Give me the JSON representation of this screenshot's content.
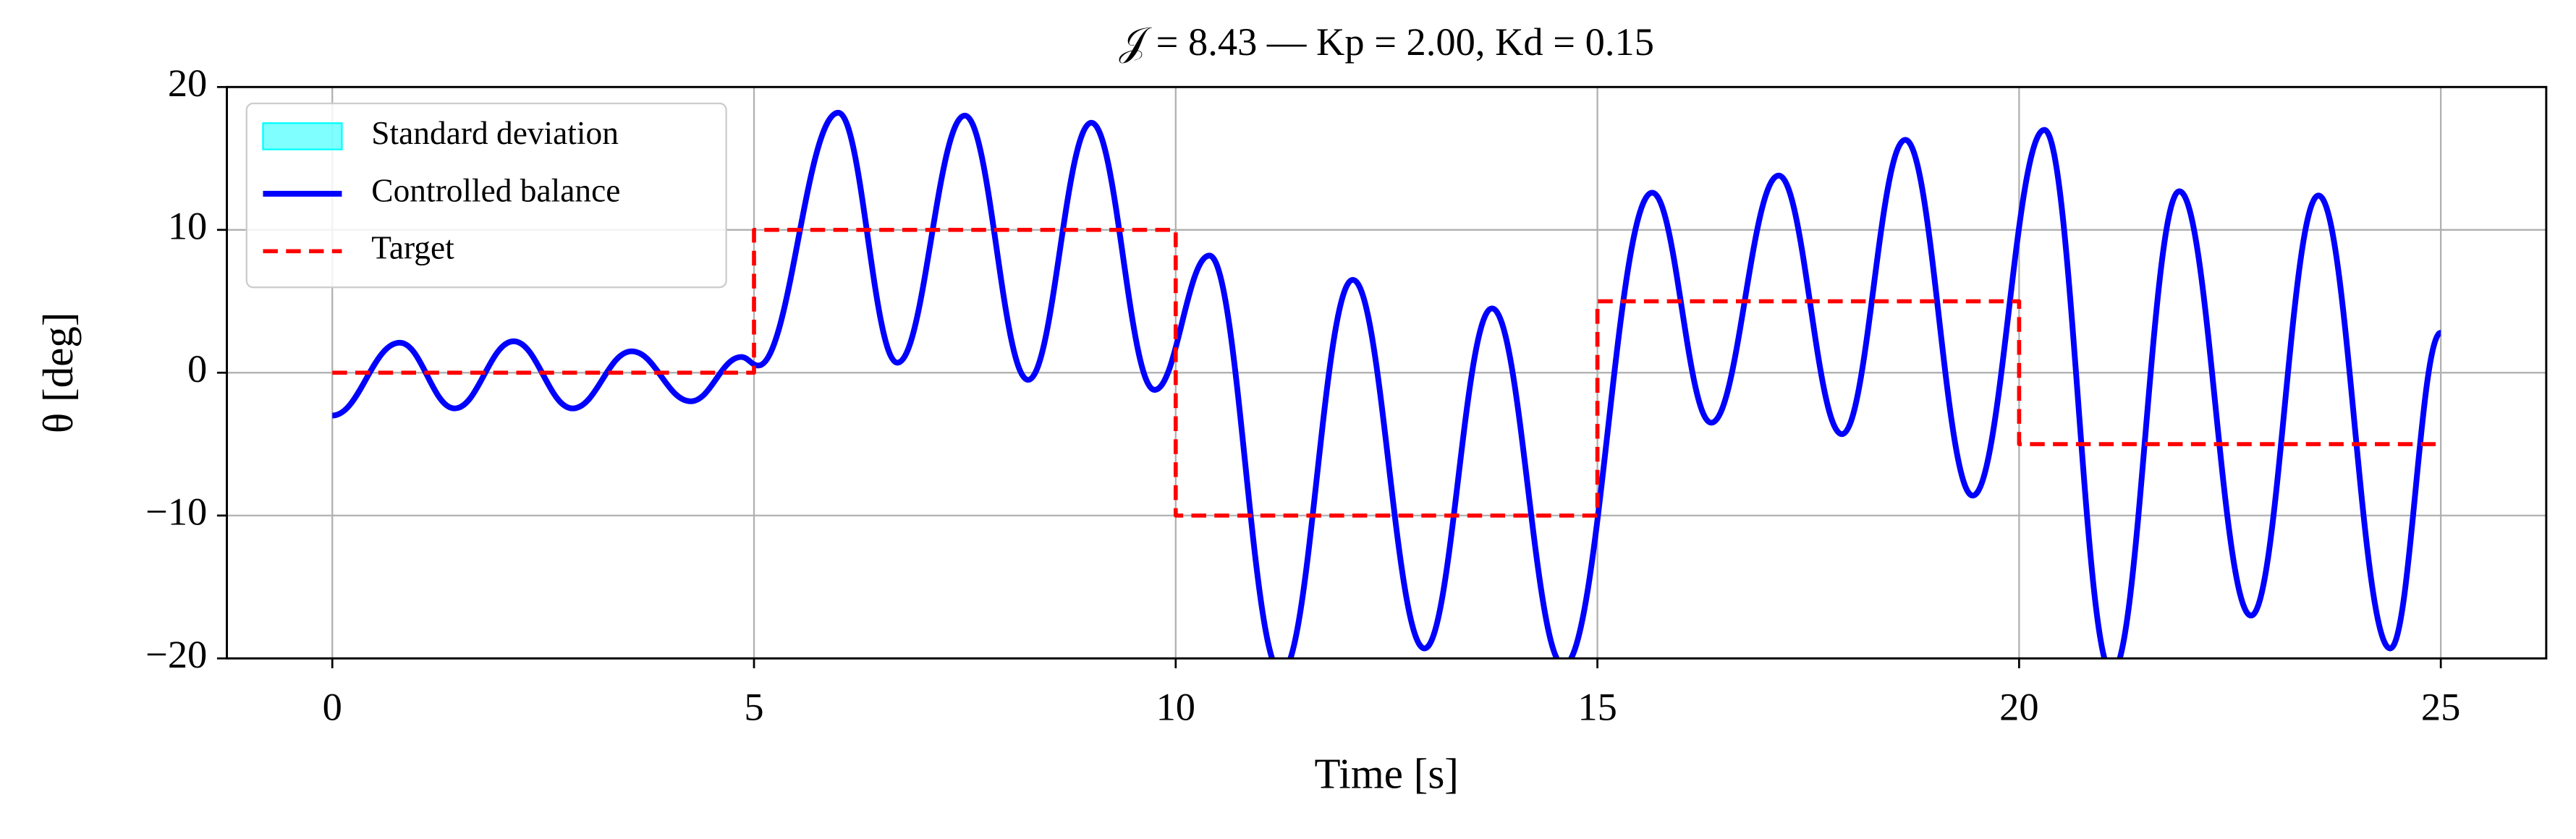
{
  "chart_data": {
    "type": "line",
    "title": "𝒥 = 8.43 — Kp = 2.00, Kd = 0.15",
    "xlabel": "Time [s]",
    "ylabel": "θ [deg]",
    "xlim": [
      -1.25,
      26.25
    ],
    "ylim": [
      -20,
      20
    ],
    "xticks": [
      0,
      5,
      10,
      15,
      20,
      25
    ],
    "yticks": [
      {
        "value": -20,
        "label": "−20"
      },
      {
        "value": -10,
        "label": "−10"
      },
      0,
      10,
      20
    ],
    "grid": true,
    "legend": "upper left",
    "series": [
      {
        "name": "Standard deviation",
        "color": "#00ffff",
        "style": "band",
        "x": [],
        "y": []
      },
      {
        "name": "Controlled balance",
        "color": "#0000ff",
        "style": "smooth",
        "x": [
          0,
          0.8,
          1.45,
          2.15,
          2.85,
          3.55,
          4.25,
          4.85,
          5.05,
          6.0,
          6.7,
          7.5,
          8.25,
          9.0,
          9.75,
          10.4,
          11.25,
          12.1,
          12.95,
          13.75,
          14.6,
          15.65,
          16.35,
          17.15,
          17.9,
          18.65,
          19.45,
          20.3,
          21.1,
          21.9,
          22.75,
          23.55,
          24.4,
          25
        ],
        "y": [
          -3,
          2.1,
          -2.5,
          2.2,
          -2.5,
          1.5,
          -2,
          1.1,
          0.5,
          18.2,
          0.7,
          18,
          -0.5,
          17.5,
          -1.2,
          8.2,
          -21,
          6.5,
          -19.3,
          4.5,
          -20.5,
          12.6,
          -3.5,
          13.8,
          -4.3,
          16.3,
          -8.6,
          17,
          -21,
          12.7,
          -17,
          12.4,
          -19.3,
          2.8
        ]
      },
      {
        "name": "Target",
        "color": "#ff0000",
        "style": "dashed-step",
        "x": [
          0,
          5,
          5,
          10,
          10,
          15,
          15,
          20,
          20,
          25
        ],
        "y": [
          0,
          0,
          10,
          10,
          -10,
          -10,
          5,
          5,
          -5,
          -5
        ]
      }
    ]
  }
}
